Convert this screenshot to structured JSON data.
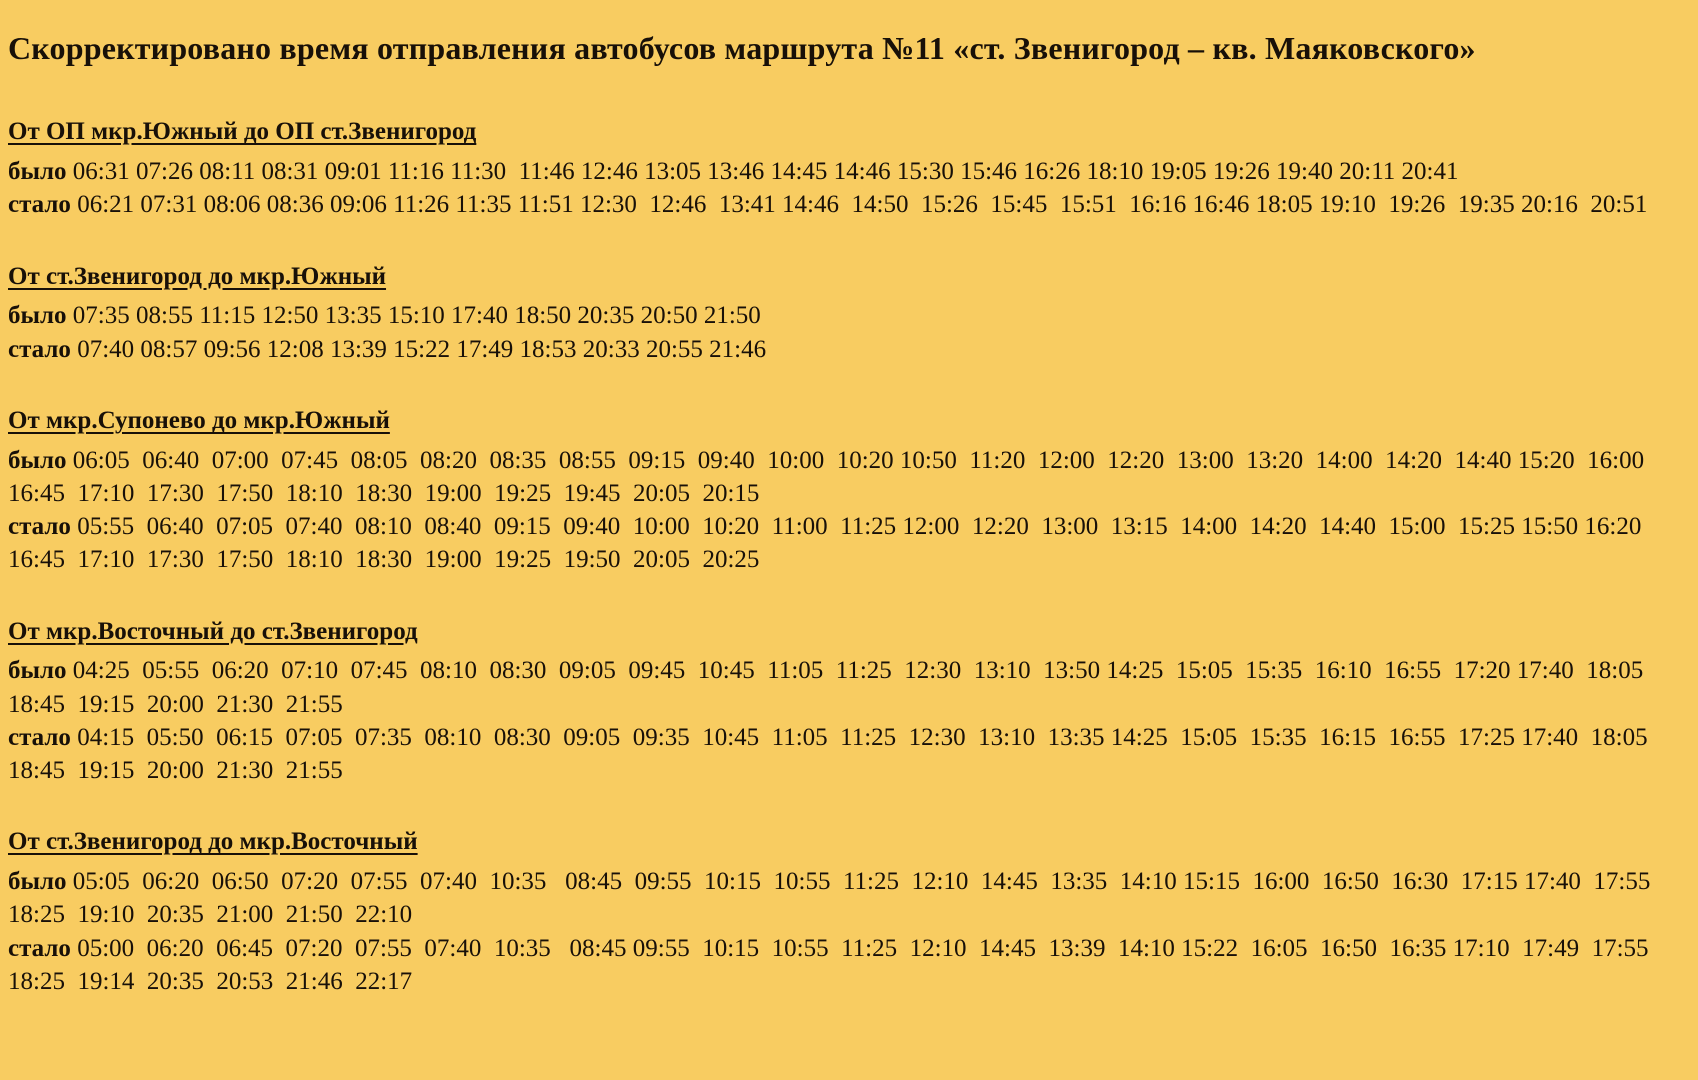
{
  "page": {
    "title": "Скорректировано время отправления автобусов маршрута №11 «ст. Звенигород – кв. Маяковского»",
    "background_color": "#F8CC61",
    "text_color": "#181008"
  },
  "labels": {
    "was": "было",
    "became": "стало"
  },
  "sections": [
    {
      "heading": "От ОП мкр.Южный до ОП ст.Звенигород",
      "was_times": "06:31 07:26 08:11 08:31 09:01 11:16 11:30  11:46 12:46 13:05 13:46 14:45 14:46 15:30 15:46 16:26 18:10 19:05 19:26 19:40 20:11 20:41",
      "became_times": "06:21 07:31 08:06 08:36 09:06 11:26 11:35 11:51 12:30  12:46  13:41 14:46  14:50  15:26  15:45  15:51  16:16 16:46 18:05 19:10  19:26  19:35 20:16  20:51"
    },
    {
      "heading": "От ст.Звенигород до мкр.Южный",
      "was_times": "07:35 08:55 11:15 12:50 13:35 15:10 17:40 18:50 20:35 20:50 21:50",
      "became_times": "07:40 08:57 09:56 12:08 13:39 15:22 17:49 18:53 20:33 20:55 21:46"
    },
    {
      "heading": "От мкр.Супонево до мкр.Южный",
      "was_times": "06:05  06:40  07:00  07:45  08:05  08:20  08:35  08:55  09:15  09:40  10:00  10:20 10:50  11:20  12:00  12:20  13:00  13:20  14:00  14:20  14:40 15:20  16:00 16:45  17:10  17:30  17:50  18:10  18:30  19:00  19:25  19:45  20:05  20:15",
      "became_times": "05:55  06:40  07:05  07:40  08:10  08:40  09:15  09:40  10:00  10:20  11:00  11:25 12:00  12:20  13:00  13:15  14:00  14:20  14:40  15:00  15:25 15:50 16:20  16:45  17:10  17:30  17:50  18:10  18:30  19:00  19:25  19:50  20:05  20:25"
    },
    {
      "heading": "От мкр.Восточный до ст.Звенигород",
      "was_times": "04:25  05:55  06:20  07:10  07:45  08:10  08:30  09:05  09:45  10:45  11:05  11:25  12:30  13:10  13:50 14:25  15:05  15:35  16:10  16:55  17:20 17:40  18:05  18:45  19:15  20:00  21:30  21:55",
      "became_times": "04:15  05:50  06:15  07:05  07:35  08:10  08:30  09:05  09:35  10:45  11:05  11:25  12:30  13:10  13:35 14:25  15:05  15:35  16:15  16:55  17:25 17:40  18:05  18:45  19:15  20:00  21:30  21:55"
    },
    {
      "heading": "От ст.Звенигород до мкр.Восточный",
      "was_times": "05:05  06:20  06:50  07:20  07:55  07:40  10:35   08:45  09:55  10:15  10:55  11:25  12:10  14:45  13:35  14:10 15:15  16:00  16:50  16:30  17:15 17:40  17:55  18:25  19:10  20:35  21:00  21:50  22:10",
      "became_times": "05:00  06:20  06:45  07:20  07:55  07:40  10:35   08:45 09:55  10:15  10:55  11:25  12:10  14:45  13:39  14:10 15:22  16:05  16:50  16:35 17:10  17:49  17:55  18:25  19:14  20:35  20:53  21:46  22:17"
    }
  ]
}
